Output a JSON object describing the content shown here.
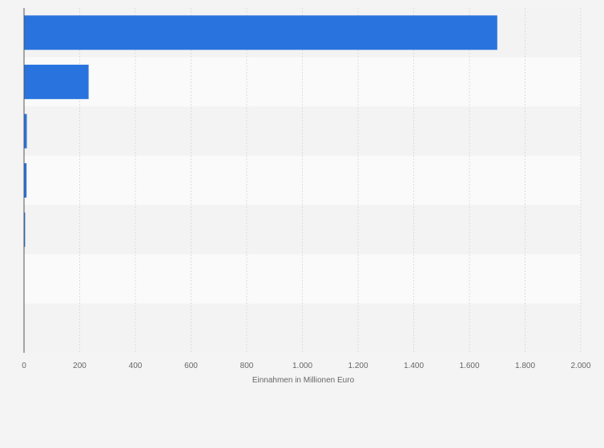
{
  "chart_data": {
    "type": "bar",
    "orientation": "horizontal",
    "title": "",
    "xlabel": "Einnahmen in Millionen Euro",
    "ylabel": "",
    "categories": [
      "",
      "",
      "",
      "",
      "",
      "",
      ""
    ],
    "values": [
      1700,
      232,
      10,
      9,
      4,
      0,
      0
    ],
    "xlim": [
      0,
      2000
    ],
    "xticks": [
      0,
      200,
      400,
      600,
      800,
      1000,
      1200,
      1400,
      1600,
      1800,
      2000
    ],
    "xtick_labels": [
      "0",
      "200",
      "400",
      "600",
      "800",
      "1.000",
      "1.200",
      "1.400",
      "1.600",
      "1.800",
      "2.000"
    ],
    "grid": true,
    "legend": "none",
    "colors": {
      "bar": "#2873de",
      "grid": "#dcdcdc",
      "axis": "#555555",
      "band_light": "#fafafa",
      "band_dark": "#f3f3f3",
      "background": "#f4f4f4",
      "text": "#666666"
    }
  }
}
